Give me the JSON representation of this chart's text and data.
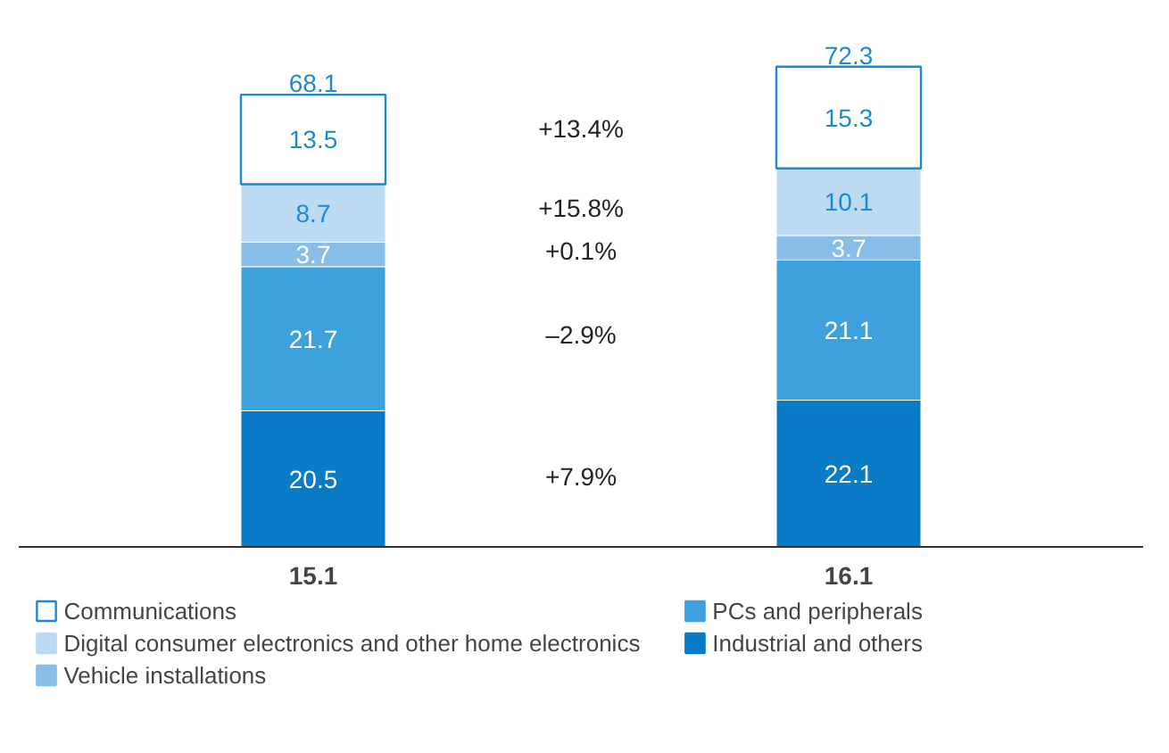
{
  "chart_data": {
    "type": "bar",
    "stacked": true,
    "categories": [
      "15.1",
      "16.1"
    ],
    "series": [
      {
        "name": "Industrial and others",
        "color": "#0a7bc6",
        "values": [
          20.5,
          22.1
        ]
      },
      {
        "name": "PCs and peripherals",
        "color": "#3fa1dc",
        "values": [
          21.7,
          21.1
        ]
      },
      {
        "name": "Vehicle installations",
        "color": "#87bde6",
        "values": [
          3.7,
          3.7
        ]
      },
      {
        "name": "Digital consumer electronics and other home electronics",
        "color": "#bcdaf2",
        "values": [
          8.7,
          10.1
        ]
      },
      {
        "name": "Communications",
        "color": "#ffffff",
        "values": [
          13.5,
          15.3
        ]
      }
    ],
    "data_labels": true,
    "totals": [
      "68.1",
      "72.3"
    ],
    "annotations": [
      "+7.9%",
      "–2.9%",
      "+0.1%",
      "+15.8%",
      "+13.4%"
    ],
    "legend": "bottom",
    "grid": false
  }
}
